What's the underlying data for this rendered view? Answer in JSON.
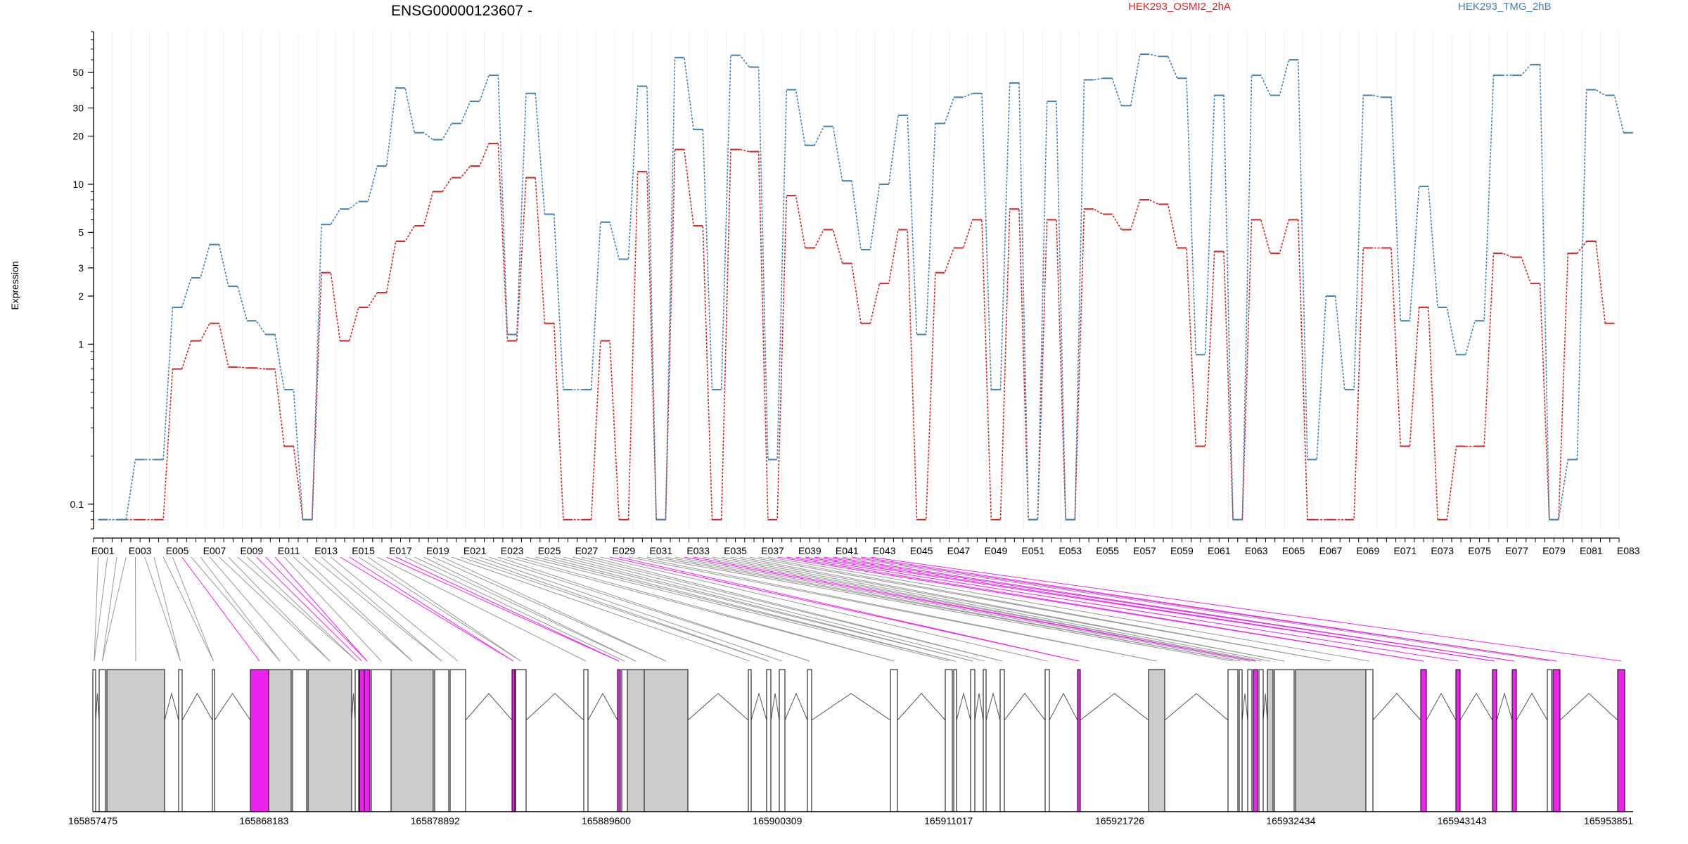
{
  "chart_data": {
    "type": "line",
    "title": "ENSG00000123607 -",
    "ylabel": "Expression",
    "xlabel": "",
    "yscale": "log",
    "ylim": [
      0.07,
      90
    ],
    "y_ticks": [
      0.1,
      1,
      2,
      3,
      5,
      10,
      20,
      30,
      50
    ],
    "y_tick_labels": [
      "0.1",
      "1",
      "2",
      "3",
      "5",
      "10",
      "20",
      "30",
      "50"
    ],
    "legend_placement": "top",
    "series": [
      {
        "name": "HEK293_OSMI2_2hA",
        "color": "#d62728",
        "values": [
          0.08,
          0.08,
          0.08,
          0.08,
          0.08,
          0.08,
          0.08,
          0.08,
          0.7,
          0.7,
          1.05,
          1.05,
          1.35,
          1.35,
          0.72,
          0.72,
          0.71,
          0.71,
          0.7,
          0.7,
          0.23,
          0.23,
          0.08,
          0.08,
          2.8,
          2.8,
          1.05,
          1.05,
          1.7,
          1.7,
          2.1,
          2.1,
          4.4,
          4.4,
          5.5,
          5.5,
          9,
          9,
          11,
          11,
          13,
          13,
          18,
          18,
          1.05,
          1.05,
          11,
          11,
          1.35,
          1.35,
          0.08,
          0.08,
          0.08,
          0.08,
          1.05,
          1.05,
          0.08,
          0.08,
          12,
          12,
          0.08,
          0.08,
          16.5,
          16.5,
          5.5,
          5.5,
          0.08,
          0.08,
          16.5,
          16.5,
          16,
          16,
          0.08,
          0.08,
          8.5,
          8.5,
          4,
          4,
          5.2,
          5.2,
          3.2,
          3.2,
          1.35,
          1.35,
          2.4,
          2.4,
          5.2,
          5.2,
          0.08,
          0.08,
          2.8,
          2.8,
          4,
          4,
          6,
          6,
          0.08,
          0.08,
          7,
          7,
          0.08,
          0.08,
          6,
          6,
          0.08,
          0.08,
          7,
          7,
          6.5,
          6.5,
          5.2,
          5.2,
          8,
          8,
          7.5,
          7.5,
          4,
          4,
          0.23,
          0.23,
          3.8,
          3.8,
          0.08,
          0.08,
          6,
          6,
          3.7,
          3.7,
          6,
          6,
          0.08,
          0.08,
          0.08,
          0.08,
          0.08,
          0.08,
          4,
          4,
          4,
          4,
          0.23,
          0.23,
          1.7,
          1.7,
          0.08,
          0.08,
          0.23,
          0.23,
          0.23,
          0.23,
          3.7,
          3.7,
          3.5,
          3.5,
          2.4,
          2.4,
          0.08,
          0.08,
          3.7,
          3.7,
          4.4,
          4.4,
          1.35,
          1.35
        ]
      },
      {
        "name": "HEK293_TMG_2hB",
        "color": "#4682b4",
        "values": [
          0.08,
          0.08,
          0.08,
          0.08,
          0.19,
          0.19,
          0.19,
          0.19,
          1.7,
          1.7,
          2.6,
          2.6,
          4.2,
          4.2,
          2.3,
          2.3,
          1.4,
          1.4,
          1.15,
          1.15,
          0.52,
          0.52,
          0.08,
          0.08,
          5.6,
          5.6,
          7,
          7,
          7.8,
          7.8,
          13,
          13,
          40,
          40,
          21,
          21,
          19,
          19,
          24,
          24,
          33,
          33,
          48,
          48,
          1.15,
          1.15,
          37,
          37,
          6.5,
          6.5,
          0.52,
          0.52,
          0.52,
          0.52,
          5.8,
          5.8,
          3.4,
          3.4,
          41,
          41,
          0.08,
          0.08,
          62,
          62,
          22,
          22,
          0.52,
          0.52,
          64,
          64,
          54,
          54,
          0.19,
          0.19,
          39,
          39,
          17.5,
          17.5,
          23,
          23,
          10.5,
          10.5,
          3.9,
          3.9,
          10,
          10,
          27,
          27,
          1.15,
          1.15,
          24,
          24,
          35,
          35,
          37,
          37,
          0.52,
          0.52,
          43,
          43,
          0.08,
          0.08,
          33,
          33,
          0.08,
          0.08,
          45,
          45,
          46,
          46,
          31,
          31,
          65,
          65,
          63,
          63,
          46,
          46,
          0.86,
          0.86,
          36,
          36,
          0.08,
          0.08,
          48,
          48,
          36,
          36,
          60,
          60,
          0.19,
          0.19,
          2,
          2,
          0.52,
          0.52,
          36,
          36,
          35,
          35,
          1.4,
          1.4,
          9.7,
          9.7,
          1.7,
          1.7,
          0.86,
          0.86,
          1.4,
          1.4,
          48,
          48,
          48,
          48,
          56,
          56,
          0.08,
          0.08,
          0.19,
          0.19,
          39,
          39,
          36,
          36,
          21,
          21
        ]
      }
    ],
    "exon_labels": [
      "E001",
      "E003",
      "E005",
      "E007",
      "E009",
      "E011",
      "E013",
      "E015",
      "E017",
      "E019",
      "E021",
      "E023",
      "E025",
      "E027",
      "E029",
      "E031",
      "E033",
      "E035",
      "E037",
      "E039",
      "E041",
      "E043",
      "E045",
      "E047",
      "E049",
      "E051",
      "E053",
      "E055",
      "E057",
      "E059",
      "E061",
      "E063",
      "E065",
      "E067",
      "E069",
      "E071",
      "E073",
      "E075",
      "E077",
      "E079",
      "E081",
      "E083"
    ],
    "genomic_tick_labels": [
      "165857475",
      "165868183",
      "165878892",
      "165889600",
      "165900309",
      "165911017",
      "165921726",
      "165932434",
      "165943143",
      "165953851"
    ],
    "colors": {
      "series_a": "#d62728",
      "series_b": "#4682b4",
      "highlight": "#ee22ee",
      "exon_fill": "#cccccc",
      "connector": "#999999"
    }
  }
}
